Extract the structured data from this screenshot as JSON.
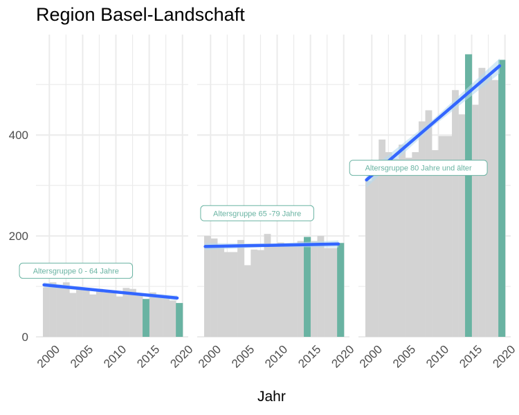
{
  "chart_data": {
    "type": "bar",
    "title": "Region Basel-Landschaft",
    "xlabel": "Jahr",
    "ylabel": "",
    "ylim": [
      0,
      600
    ],
    "y_ticks": [
      0,
      200,
      400
    ],
    "x_ticks": [
      2000,
      2005,
      2010,
      2015,
      2020
    ],
    "grid": true,
    "colors": {
      "bar": "#d3d3d3",
      "highlight": "#69b3a2",
      "trend": "#3366ff",
      "ribbon": "#b7dbee",
      "grid": "#ebebeb"
    },
    "highlight_years": [
      2014,
      2019
    ],
    "panels": [
      {
        "label": "Altersgruppe 0 - 64 Jahre",
        "label_anchor": [
          2004,
          131
        ],
        "years": [
          1999,
          2000,
          2001,
          2002,
          2003,
          2004,
          2005,
          2006,
          2007,
          2008,
          2009,
          2010,
          2011,
          2012,
          2013,
          2014,
          2015,
          2016,
          2017,
          2018,
          2019
        ],
        "values": [
          98,
          108,
          102,
          108,
          87,
          98,
          97,
          84,
          95,
          88,
          88,
          80,
          97,
          95,
          85,
          75,
          88,
          78,
          80,
          72,
          67
        ],
        "trend": {
          "start": [
            1999,
            103
          ],
          "end": [
            2019,
            77
          ],
          "ci": 5
        }
      },
      {
        "label": "Altersgruppe 65 -79 Jahre",
        "label_anchor": [
          2007,
          245
        ],
        "years": [
          1999,
          2000,
          2001,
          2002,
          2003,
          2004,
          2005,
          2006,
          2007,
          2008,
          2009,
          2010,
          2011,
          2012,
          2013,
          2014,
          2015,
          2016,
          2017,
          2018,
          2019
        ],
        "values": [
          200,
          195,
          182,
          168,
          168,
          192,
          142,
          173,
          172,
          204,
          184,
          187,
          180,
          183,
          190,
          198,
          190,
          200,
          176,
          176,
          186
        ],
        "trend": {
          "start": [
            1999,
            179
          ],
          "end": [
            2019,
            184
          ],
          "ci": 7
        }
      },
      {
        "label": "Altersgruppe 80 Jahre und älter",
        "label_anchor": [
          2007,
          335
        ],
        "years": [
          1999,
          2000,
          2001,
          2002,
          2003,
          2004,
          2005,
          2006,
          2007,
          2008,
          2009,
          2010,
          2011,
          2012,
          2013,
          2014,
          2015,
          2016,
          2017,
          2018,
          2019
        ],
        "values": [
          309,
          323,
          391,
          366,
          353,
          381,
          355,
          366,
          427,
          449,
          370,
          398,
          398,
          489,
          441,
          560,
          460,
          533,
          517,
          509,
          549
        ],
        "trend": {
          "start": [
            1999,
            311
          ],
          "end": [
            2019,
            537
          ],
          "ci": 15
        }
      }
    ]
  }
}
